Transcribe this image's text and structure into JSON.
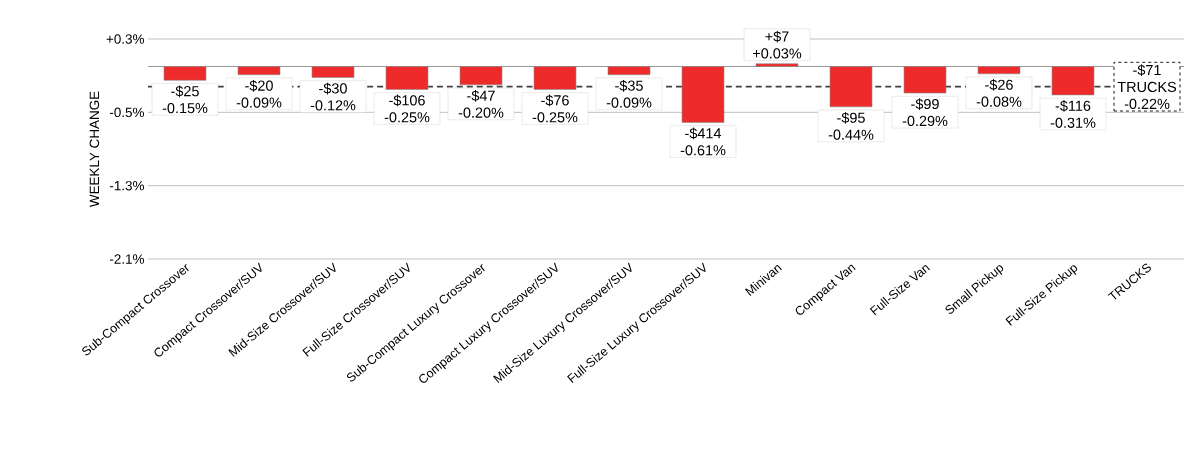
{
  "chart_data": {
    "type": "bar",
    "ylabel": "WEEKLY CHANGE",
    "categories": [
      "Sub-Compact Crossover",
      "Compact Crossover/SUV",
      "Mid-Size Crossover/SUV",
      "Full-Size Crossover/SUV",
      "Sub-Compact Luxury Crossover",
      "Compact Luxury Crossover/SUV",
      "Mid-Size Luxury Crossover/SUV",
      "Full-Size Luxury Crossover/SUV",
      "Minivan",
      "Compact Van",
      "Full-Size Van",
      "Small Pickup",
      "Full-Size Pickup",
      "TRUCKS"
    ],
    "values": [
      -0.15,
      -0.09,
      -0.12,
      -0.25,
      -0.2,
      -0.25,
      -0.09,
      -0.61,
      0.03,
      -0.44,
      -0.29,
      -0.08,
      -0.31,
      null
    ],
    "value_labels": [
      "-$25 -0.15%",
      "-$20 -0.09%",
      "-$30 -0.12%",
      "-$106 -0.25%",
      "-$47 -0.20%",
      "-$76 -0.25%",
      "-$35 -0.09%",
      "-$414 -0.61%",
      "+$7 +0.03%",
      "-$95 -0.44%",
      "-$99 -0.29%",
      "-$26 -0.08%",
      "-$116 -0.31%",
      null
    ],
    "color": "#ee2a2a",
    "ylim": [
      -2.1,
      0.3
    ],
    "yticks": [
      {
        "value": 0.3,
        "label": "+0.3%"
      },
      {
        "value": -0.5,
        "label": "-0.5%"
      },
      {
        "value": -1.3,
        "label": "-1.3%"
      },
      {
        "value": -2.1,
        "label": "-2.1%"
      }
    ],
    "grid": "y",
    "ref_lines": [
      {
        "axis": "y",
        "value": -0.22,
        "label": "-$71 TRUCKS -0.22%",
        "color": "#404040",
        "line_style": "dashed"
      }
    ]
  }
}
